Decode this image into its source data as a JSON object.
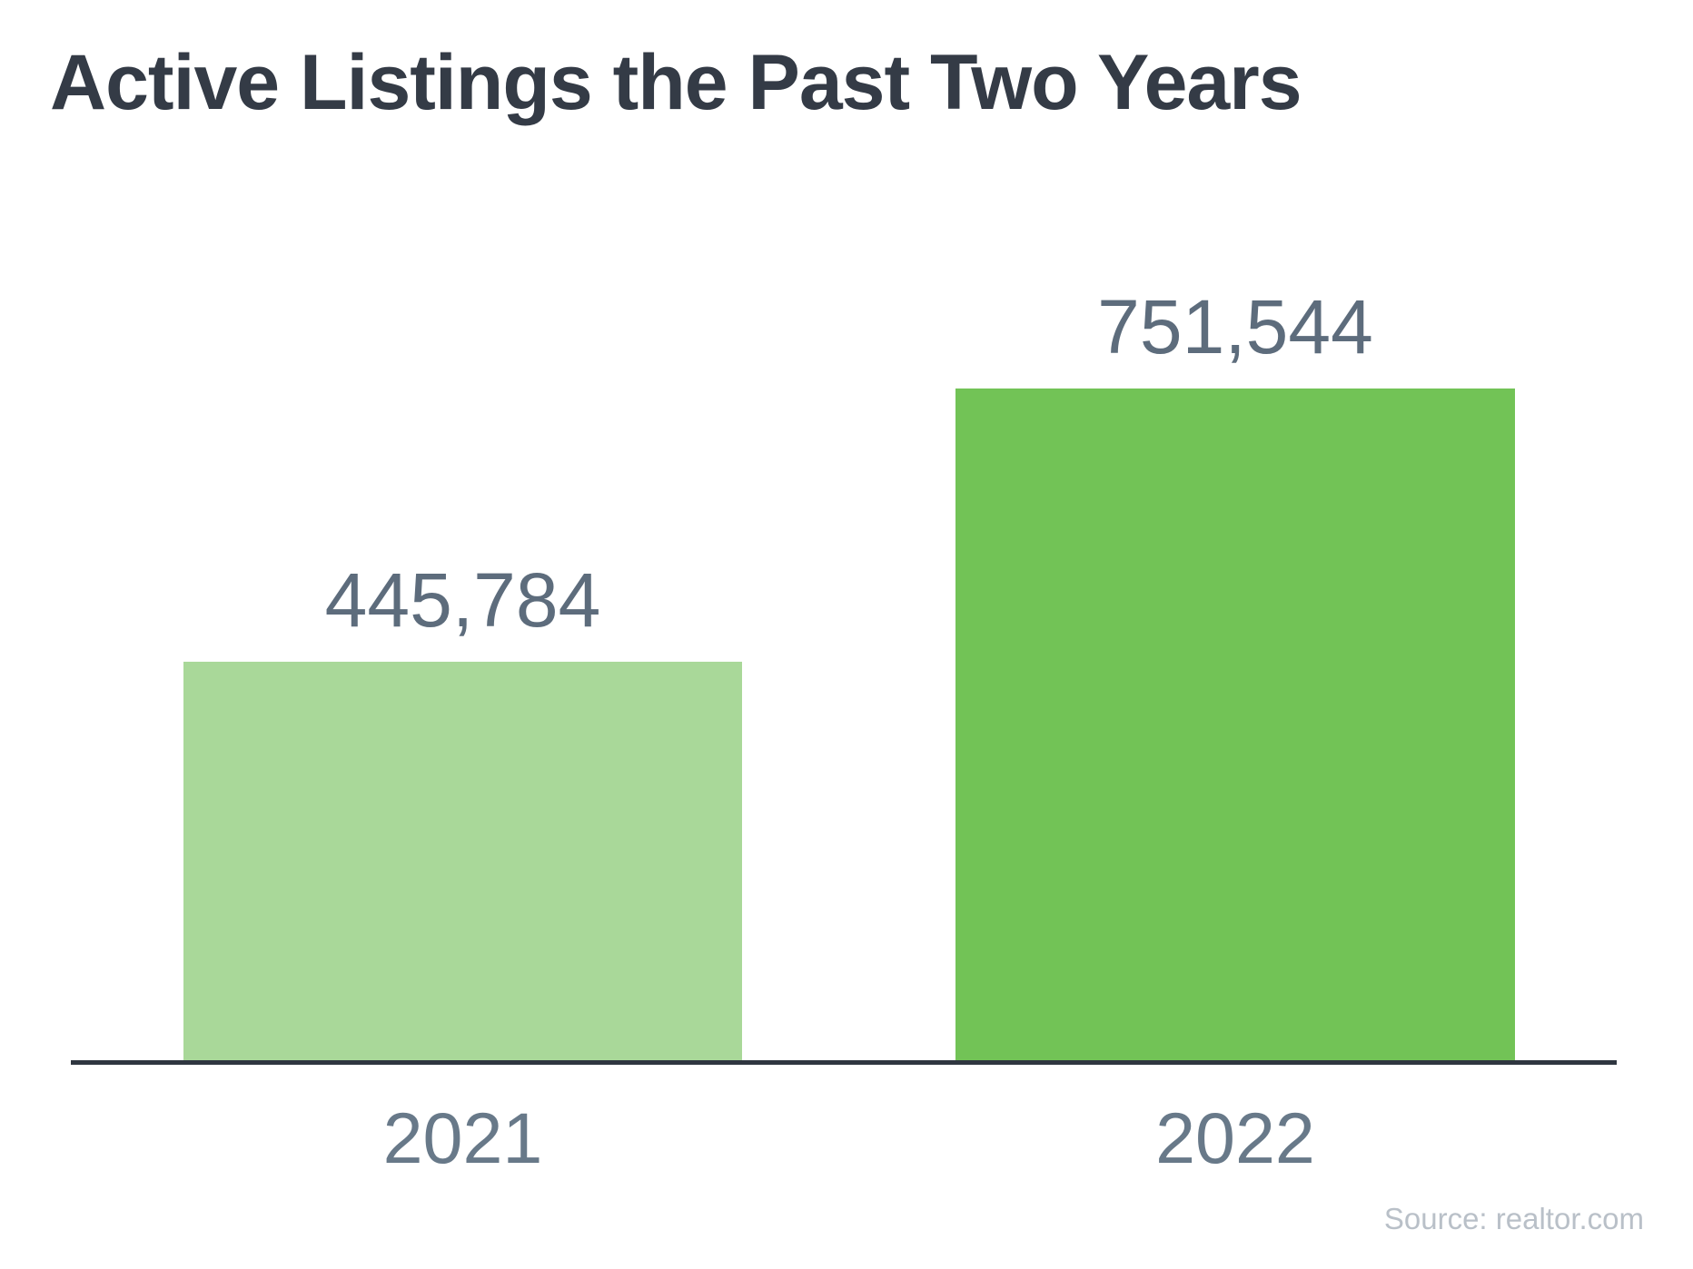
{
  "title": "Active Listings the Past Two Years",
  "source": "Source: realtor.com",
  "colors": {
    "background": "#ffffff",
    "title": "#343b46",
    "value_label": "#5d6c7c",
    "year_label": "#687989",
    "axis": "#2f3640",
    "bar_2021": "#a9d899",
    "bar_2022": "#72c356",
    "source": "#b9c0c8"
  },
  "chart_data": {
    "type": "bar",
    "title": "Active Listings the Past Two Years",
    "categories": [
      "2021",
      "2022"
    ],
    "values": [
      445784,
      751544
    ],
    "value_labels": [
      "445,784",
      "751,544"
    ],
    "series_colors": [
      "#a9d899",
      "#72c356"
    ],
    "xlabel": "",
    "ylabel": "",
    "ylim": [
      0,
      751544
    ],
    "grid": false,
    "legend": false,
    "y_axis_visible": false,
    "x_axis_visible": true,
    "source": "Source: realtor.com"
  }
}
